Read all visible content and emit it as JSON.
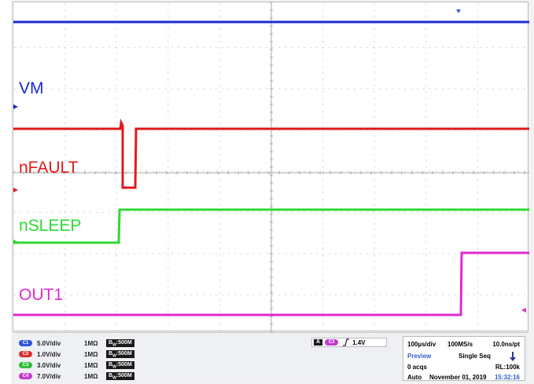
{
  "traces": [
    {
      "name": "VM",
      "color": "#1a2bd1"
    },
    {
      "name": "nFAULT",
      "color": "#e3191b"
    },
    {
      "name": "nSLEEP",
      "color": "#2ed833"
    },
    {
      "name": "OUT1",
      "color": "#e02ad0"
    }
  ],
  "channels": [
    {
      "badge": "C1",
      "scale": "5.0V/div",
      "impedance": "1MΩ",
      "bandwidth": "500M",
      "color": "#2b57d8"
    },
    {
      "badge": "C2",
      "scale": "1.0V/div",
      "impedance": "1MΩ",
      "bandwidth": "500M",
      "color": "#d93030"
    },
    {
      "badge": "C3",
      "scale": "3.0V/div",
      "impedance": "1MΩ",
      "bandwidth": "500M",
      "color": "#2fbf3a"
    },
    {
      "badge": "C4",
      "scale": "7.0V/div",
      "impedance": "1MΩ",
      "bandwidth": "500M",
      "color": "#c43ad0"
    }
  ],
  "trigger": {
    "mode_badge": "A",
    "channel_badge": "C3",
    "level": "1.4V"
  },
  "timebase": {
    "timediv": "100µs/div",
    "sample_rate": "100MS/s",
    "resolution": "10.0ns/pt",
    "status": "Preview",
    "mode": "Single Seq",
    "acqs": "0 acqs",
    "record_length": "RL:100k",
    "auto": "Auto",
    "date": "November 01, 2019",
    "time": "15:32:16"
  }
}
